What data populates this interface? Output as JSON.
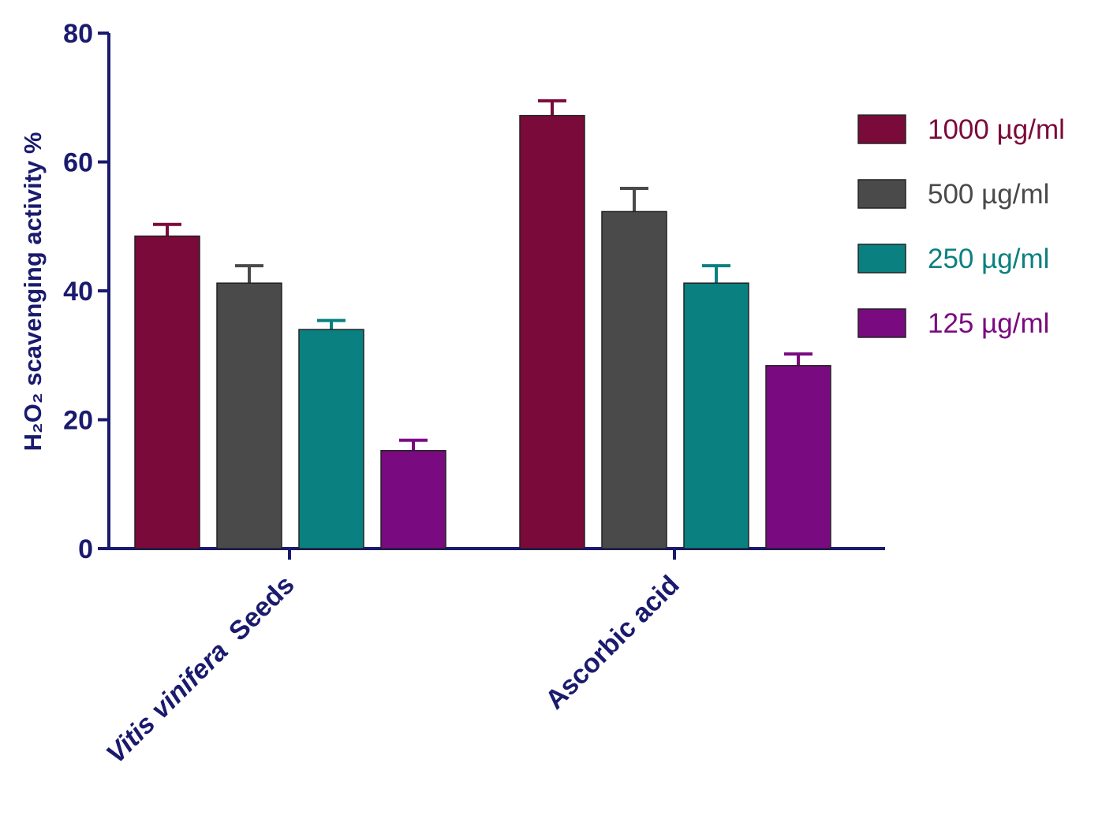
{
  "chart_data": {
    "type": "bar",
    "ylabel": "H₂O₂ scavenging activity %",
    "xlabel": "",
    "ylim": [
      0,
      80
    ],
    "yticks": [
      0,
      20,
      40,
      60,
      80
    ],
    "categories": [
      "Vitis vinifera  Seeds",
      "Ascorbic acid"
    ],
    "category_styles": [
      "italic",
      "normal"
    ],
    "legend_position": "right",
    "axis_color": "#1a1a6e",
    "series": [
      {
        "name": "1000 µg/ml",
        "color": "#7a0a3a",
        "values": [
          48.5,
          67.2
        ],
        "errors": [
          1.8,
          2.3
        ]
      },
      {
        "name": "500 µg/ml",
        "color": "#4a4a4a",
        "values": [
          41.2,
          52.3
        ],
        "errors": [
          2.7,
          3.6
        ]
      },
      {
        "name": "250 µg/ml",
        "color": "#0a8080",
        "values": [
          34.0,
          41.2
        ],
        "errors": [
          1.4,
          2.7
        ]
      },
      {
        "name": "125 µg/ml",
        "color": "#7a0a80",
        "values": [
          15.2,
          28.4
        ],
        "errors": [
          1.6,
          1.8
        ]
      }
    ]
  }
}
